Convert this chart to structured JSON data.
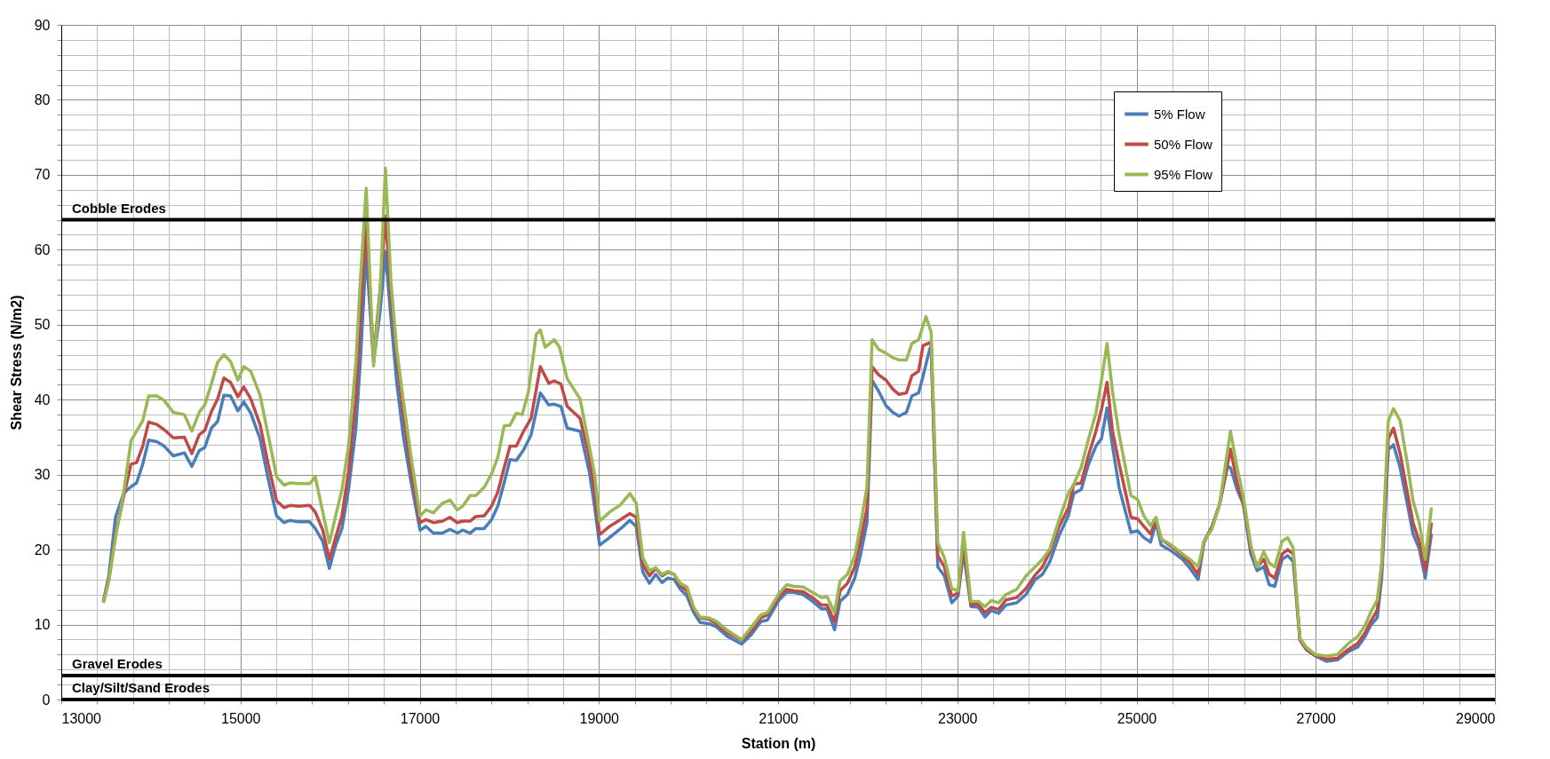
{
  "chart_data": {
    "type": "line",
    "xlabel": "Station (m)",
    "ylabel": "Shear Stress (N/m2)",
    "xlim": [
      13000,
      29000
    ],
    "ylim": [
      0,
      90
    ],
    "xticks": [
      13000,
      {
        "value": 13400,
        "label": null
      },
      {
        "value": 13800,
        "label": null
      },
      {
        "value": 14200,
        "label": null
      },
      {
        "value": 14600,
        "label": null
      },
      15000,
      {
        "value": 15400,
        "label": null
      },
      {
        "value": 15800,
        "label": null
      },
      {
        "value": 16200,
        "label": null
      },
      {
        "value": 16600,
        "label": null
      },
      17000,
      {
        "value": 17400,
        "label": null
      },
      {
        "value": 17800,
        "label": null
      },
      {
        "value": 18200,
        "label": null
      },
      {
        "value": 18600,
        "label": null
      },
      19000,
      {
        "value": 19400,
        "label": null
      },
      {
        "value": 19800,
        "label": null
      },
      {
        "value": 20200,
        "label": null
      },
      {
        "value": 20600,
        "label": null
      },
      21000,
      {
        "value": 21400,
        "label": null
      },
      {
        "value": 21800,
        "label": null
      },
      {
        "value": 22200,
        "label": null
      },
      {
        "value": 22600,
        "label": null
      },
      23000,
      {
        "value": 23400,
        "label": null
      },
      {
        "value": 23800,
        "label": null
      },
      {
        "value": 24200,
        "label": null
      },
      {
        "value": 24600,
        "label": null
      },
      25000,
      {
        "value": 25400,
        "label": null
      },
      {
        "value": 25800,
        "label": null
      },
      {
        "value": 26200,
        "label": null
      },
      {
        "value": 26600,
        "label": null
      },
      27000,
      {
        "value": 27400,
        "label": null
      },
      {
        "value": 27800,
        "label": null
      },
      {
        "value": 28200,
        "label": null
      },
      {
        "value": 28600,
        "label": null
      },
      29000
    ],
    "yticks": [
      0,
      {
        "value": 2,
        "label": null
      },
      {
        "value": 4,
        "label": null
      },
      {
        "value": 6,
        "label": null
      },
      {
        "value": 8,
        "label": null
      },
      10,
      {
        "value": 12,
        "label": null
      },
      {
        "value": 14,
        "label": null
      },
      {
        "value": 16,
        "label": null
      },
      {
        "value": 18,
        "label": null
      },
      20,
      {
        "value": 22,
        "label": null
      },
      {
        "value": 24,
        "label": null
      },
      {
        "value": 26,
        "label": null
      },
      {
        "value": 28,
        "label": null
      },
      30,
      {
        "value": 32,
        "label": null
      },
      {
        "value": 34,
        "label": null
      },
      {
        "value": 36,
        "label": null
      },
      {
        "value": 38,
        "label": null
      },
      40,
      {
        "value": 42,
        "label": null
      },
      {
        "value": 44,
        "label": null
      },
      {
        "value": 46,
        "label": null
      },
      {
        "value": 48,
        "label": null
      },
      50,
      {
        "value": 52,
        "label": null
      },
      {
        "value": 54,
        "label": null
      },
      {
        "value": 56,
        "label": null
      },
      {
        "value": 58,
        "label": null
      },
      60,
      {
        "value": 62,
        "label": null
      },
      {
        "value": 64,
        "label": null
      },
      {
        "value": 66,
        "label": null
      },
      {
        "value": 68,
        "label": null
      },
      70,
      {
        "value": 72,
        "label": null
      },
      {
        "value": 74,
        "label": null
      },
      {
        "value": 76,
        "label": null
      },
      {
        "value": 78,
        "label": null
      },
      80,
      {
        "value": 82,
        "label": null
      },
      {
        "value": 84,
        "label": null
      },
      {
        "value": 86,
        "label": null
      },
      {
        "value": 88,
        "label": null
      },
      90
    ],
    "grid": true,
    "legend": "top right",
    "marker": "none",
    "line_style": "solid",
    "ref_lines": [
      {
        "axis": "y",
        "value": 64,
        "label": "Cobble Erodes",
        "color": "#000000"
      },
      {
        "axis": "y",
        "value": 3.2,
        "label": "Gravel Erodes",
        "color": "#000000"
      },
      {
        "axis": "y",
        "value": 0,
        "label": "Clay/Silt/Sand Erodes",
        "color": "#000000"
      }
    ],
    "series": [
      {
        "name": "5% Flow",
        "color": "#4a7ebb",
        "x": [
          13470,
          13531,
          13605,
          13695,
          13778,
          13840,
          13909,
          13975,
          14066,
          14148,
          14251,
          14374,
          14457,
          14539,
          14601,
          14675,
          14745,
          14815,
          14889,
          14971,
          15037,
          15115,
          15218,
          15309,
          15403,
          15486,
          15555,
          15650,
          15773,
          15835,
          15918,
          15992,
          16062,
          16132,
          16206,
          16288,
          16337,
          16403,
          16485,
          16560,
          16617,
          16679,
          16741,
          16815,
          16905,
          17004,
          17070,
          17152,
          17255,
          17337,
          17420,
          17481,
          17563,
          17625,
          17720,
          17802,
          17872,
          17942,
          18008,
          18078,
          18160,
          18243,
          18346,
          18440,
          18502,
          18576,
          18646,
          18790,
          18893,
          18955,
          19008,
          19119,
          19243,
          19346,
          19416,
          19490,
          19564,
          19634,
          19704,
          19770,
          19840,
          19909,
          19983,
          20058,
          20128,
          20230,
          20313,
          20436,
          20593,
          20704,
          20807,
          20881,
          21012,
          21095,
          21177,
          21280,
          21383,
          21486,
          21547,
          21630,
          21691,
          21774,
          21856,
          21918,
          21992,
          22049,
          22123,
          22205,
          22280,
          22349,
          22432,
          22493,
          22568,
          22617,
          22691,
          22708,
          22782,
          22856,
          22938,
          23008,
          23070,
          23152,
          23235,
          23309,
          23379,
          23461,
          23543,
          23663,
          23766,
          23869,
          23951,
          24033,
          24136,
          24239,
          24300,
          24383,
          24465,
          24547,
          24609,
          24671,
          24732,
          24807,
          24938,
          25012,
          25082,
          25156,
          25218,
          25276,
          25391,
          25514,
          25597,
          25687,
          25753,
          25844,
          25926,
          26016,
          26049,
          26123,
          26193,
          26276,
          26346,
          26420,
          26481,
          26543,
          26625,
          26687,
          26749,
          26823,
          26893,
          26996,
          27119,
          27242,
          27366,
          27469,
          27551,
          27613,
          27687,
          27736,
          27810,
          27868,
          27942,
          28024,
          28086,
          28156,
          28222,
          28292
        ],
        "values": [
          13.1,
          16.5,
          24.3,
          27.5,
          28.4,
          28.9,
          31.4,
          34.6,
          34.4,
          33.8,
          32.5,
          32.9,
          31.1,
          33.2,
          33.6,
          36.2,
          37.1,
          40.6,
          40.5,
          38.5,
          39.7,
          38.2,
          34.8,
          29.4,
          24.5,
          23.6,
          23.9,
          23.7,
          23.7,
          22.8,
          21.1,
          17.5,
          20.6,
          22.8,
          28.0,
          36.2,
          45,
          59.7,
          45,
          52,
          59.7,
          50.9,
          42.6,
          35.3,
          28.9,
          22.6,
          23.1,
          22.2,
          22.2,
          22.7,
          22.2,
          22.6,
          22.2,
          22.8,
          22.8,
          24.0,
          25.8,
          28.9,
          32.0,
          31.9,
          33.3,
          35.3,
          40.9,
          39.3,
          39.4,
          39.1,
          36.2,
          35.8,
          30.4,
          25.5,
          20.6,
          21.6,
          22.8,
          23.9,
          23.1,
          17.0,
          15.5,
          16.7,
          15.6,
          16.2,
          16.0,
          14.7,
          13.8,
          11.6,
          10.3,
          10.1,
          9.7,
          8.4,
          7.4,
          8.7,
          10.4,
          10.6,
          13.3,
          14.3,
          14.3,
          14.0,
          13.1,
          12.1,
          12.1,
          9.3,
          13.1,
          14.0,
          16.2,
          19.2,
          23.6,
          42.6,
          41.1,
          39.2,
          38.3,
          37.8,
          38.3,
          40.5,
          40.9,
          43.1,
          46.7,
          47.2,
          17.7,
          16.5,
          12.9,
          13.8,
          19.7,
          12.4,
          12.3,
          11.0,
          11.9,
          11.5,
          12.6,
          12.9,
          14.0,
          16.0,
          16.7,
          18.4,
          21.9,
          24.5,
          27.5,
          28.0,
          31.4,
          33.8,
          34.8,
          38.9,
          33.8,
          28.2,
          22.3,
          22.5,
          21.6,
          21.0,
          23.6,
          20.6,
          19.8,
          18.7,
          17.5,
          16.0,
          20.9,
          23.1,
          26.0,
          31.1,
          30.9,
          28.0,
          26.0,
          19.4,
          17.2,
          17.7,
          15.3,
          15.1,
          18.7,
          19.2,
          18.4,
          8.0,
          6.7,
          5.8,
          5.1,
          5.3,
          6.4,
          7.0,
          8.4,
          9.9,
          10.9,
          16.2,
          33.3,
          34.0,
          30.9,
          26.0,
          22.1,
          20.1,
          16.2,
          22.1
        ]
      },
      {
        "name": "50% Flow",
        "color": "#be4b48",
        "x": [
          13470,
          13531,
          13605,
          13695,
          13778,
          13840,
          13909,
          13975,
          14066,
          14148,
          14251,
          14374,
          14457,
          14539,
          14601,
          14675,
          14745,
          14815,
          14889,
          14971,
          15037,
          15115,
          15218,
          15309,
          15403,
          15486,
          15555,
          15650,
          15773,
          15835,
          15918,
          15992,
          16062,
          16132,
          16206,
          16288,
          16337,
          16403,
          16485,
          16560,
          16617,
          16679,
          16741,
          16815,
          16905,
          17004,
          17070,
          17152,
          17255,
          17337,
          17420,
          17481,
          17563,
          17625,
          17720,
          17802,
          17872,
          17942,
          18008,
          18078,
          18160,
          18243,
          18346,
          18440,
          18502,
          18576,
          18646,
          18790,
          18893,
          18955,
          19008,
          19119,
          19243,
          19346,
          19416,
          19490,
          19564,
          19634,
          19704,
          19770,
          19840,
          19909,
          19983,
          20058,
          20128,
          20230,
          20313,
          20436,
          20593,
          20704,
          20807,
          20881,
          21012,
          21095,
          21177,
          21280,
          21383,
          21486,
          21547,
          21630,
          21691,
          21774,
          21856,
          21918,
          21992,
          22049,
          22123,
          22205,
          22280,
          22349,
          22432,
          22493,
          22568,
          22617,
          22691,
          22708,
          22782,
          22856,
          22938,
          23008,
          23070,
          23152,
          23235,
          23309,
          23379,
          23461,
          23543,
          23663,
          23766,
          23869,
          23951,
          24033,
          24136,
          24239,
          24300,
          24383,
          24465,
          24547,
          24609,
          24671,
          24732,
          24807,
          24938,
          25012,
          25082,
          25156,
          25218,
          25276,
          25391,
          25514,
          25597,
          25687,
          25753,
          25844,
          25926,
          26016,
          26049,
          26123,
          26193,
          26276,
          26346,
          26420,
          26481,
          26543,
          26625,
          26687,
          26749,
          26823,
          26893,
          26996,
          27119,
          27242,
          27366,
          27469,
          27551,
          27613,
          27687,
          27736,
          27810,
          27868,
          27942,
          28024,
          28086,
          28156,
          28222,
          28292
        ],
        "values": [
          13.0,
          16.0,
          22.0,
          27.0,
          31.4,
          31.6,
          33.8,
          37.0,
          36.7,
          36.0,
          34.9,
          35.0,
          32.8,
          35.3,
          35.9,
          38.4,
          40.1,
          42.9,
          42.3,
          40.4,
          41.7,
          40.1,
          36.7,
          31.4,
          26.5,
          25.6,
          25.9,
          25.8,
          25.9,
          25.0,
          22.6,
          18.7,
          21.6,
          24.5,
          30.4,
          40.1,
          50.9,
          63.6,
          45.5,
          55,
          64.5,
          53.8,
          46.0,
          38.2,
          30.4,
          23.6,
          24.0,
          23.6,
          23.8,
          24.3,
          23.6,
          23.8,
          23.8,
          24.4,
          24.5,
          25.8,
          27.7,
          30.9,
          33.8,
          33.8,
          35.8,
          37.5,
          44.4,
          42.2,
          42.5,
          42.1,
          39.1,
          37.5,
          32.3,
          27.5,
          22.0,
          23.1,
          24.0,
          24.8,
          24.3,
          18.0,
          16.5,
          17.5,
          16.5,
          17.0,
          16.7,
          15.2,
          14.5,
          12.1,
          10.9,
          10.7,
          10.1,
          8.9,
          7.9,
          9.2,
          10.9,
          11.3,
          13.8,
          14.7,
          14.5,
          14.4,
          13.6,
          12.6,
          12.6,
          10.4,
          14.5,
          15.5,
          17.7,
          21.1,
          25.5,
          44.4,
          43.3,
          42.6,
          41.4,
          40.7,
          40.9,
          43.2,
          43.8,
          47.2,
          47.6,
          47.5,
          19.2,
          17.7,
          13.8,
          14.2,
          20.6,
          12.7,
          12.7,
          11.6,
          12.3,
          12.0,
          13.3,
          13.6,
          14.8,
          16.6,
          17.7,
          19.7,
          23.1,
          25.5,
          28.7,
          28.9,
          32.6,
          35.8,
          38.7,
          42.3,
          35.8,
          31.4,
          24.3,
          24.1,
          23.1,
          22.1,
          24.0,
          21.4,
          20.4,
          19.2,
          18.2,
          16.7,
          21.1,
          23.1,
          26.0,
          31.4,
          33.4,
          28.9,
          26.2,
          20.1,
          17.7,
          18.7,
          16.7,
          16.2,
          19.4,
          20.0,
          19.4,
          8.0,
          6.7,
          5.9,
          5.4,
          5.5,
          6.7,
          7.5,
          8.9,
          10.4,
          11.9,
          17.7,
          34.8,
          36.2,
          32.8,
          27.5,
          23.6,
          21.1,
          17.2,
          23.6
        ]
      },
      {
        "name": "95% Flow",
        "color": "#98b954",
        "x": [
          13470,
          13531,
          13605,
          13695,
          13778,
          13840,
          13909,
          13975,
          14066,
          14148,
          14251,
          14374,
          14457,
          14539,
          14601,
          14675,
          14745,
          14815,
          14889,
          14971,
          15037,
          15115,
          15218,
          15309,
          15403,
          15486,
          15555,
          15650,
          15773,
          15835,
          15918,
          15992,
          16062,
          16132,
          16206,
          16288,
          16337,
          16403,
          16485,
          16560,
          16617,
          16679,
          16741,
          16815,
          16905,
          17004,
          17070,
          17152,
          17255,
          17337,
          17420,
          17481,
          17563,
          17625,
          17720,
          17802,
          17872,
          17942,
          18008,
          18078,
          18144,
          18214,
          18300,
          18346,
          18400,
          18502,
          18560,
          18646,
          18790,
          18955,
          19008,
          19119,
          19243,
          19346,
          19416,
          19490,
          19564,
          19634,
          19704,
          19770,
          19840,
          19909,
          19983,
          20058,
          20128,
          20230,
          20313,
          20436,
          20593,
          20704,
          20807,
          20881,
          21012,
          21095,
          21177,
          21280,
          21383,
          21486,
          21547,
          21630,
          21691,
          21774,
          21856,
          21918,
          21992,
          22049,
          22123,
          22205,
          22280,
          22349,
          22432,
          22493,
          22568,
          22650,
          22708,
          22782,
          22856,
          22938,
          23008,
          23070,
          23152,
          23235,
          23309,
          23379,
          23461,
          23543,
          23663,
          23766,
          23869,
          23951,
          24033,
          24136,
          24239,
          24300,
          24383,
          24465,
          24547,
          24609,
          24671,
          24732,
          24807,
          24938,
          25012,
          25082,
          25156,
          25218,
          25276,
          25391,
          25514,
          25597,
          25687,
          25753,
          25844,
          25926,
          26049,
          26123,
          26193,
          26276,
          26346,
          26420,
          26481,
          26543,
          26625,
          26687,
          26749,
          26823,
          26893,
          26996,
          27119,
          27242,
          27366,
          27469,
          27551,
          27613,
          27687,
          27736,
          27810,
          27868,
          27942,
          28024,
          28086,
          28156,
          28222,
          28292
        ],
        "values": [
          12.9,
          15.8,
          21.6,
          27.5,
          34.5,
          35.8,
          37.2,
          40.5,
          40.5,
          39.9,
          38.3,
          38.0,
          35.8,
          38.3,
          39.3,
          42.1,
          45.0,
          46.0,
          45.1,
          42.6,
          44.4,
          43.8,
          40.6,
          35.3,
          29.7,
          28.6,
          28.9,
          28.8,
          28.8,
          29.7,
          25.0,
          20.9,
          24.5,
          28.0,
          33.8,
          45.0,
          55.8,
          68.2,
          44.5,
          54.8,
          70.9,
          55.8,
          47.0,
          40.1,
          32.3,
          24.5,
          25.3,
          24.9,
          26.2,
          26.6,
          25.3,
          25.8,
          27.2,
          27.2,
          28.3,
          30.1,
          32.3,
          36.5,
          36.6,
          38.2,
          38.0,
          41.1,
          48.7,
          49.3,
          47.0,
          48.0,
          47.0,
          42.8,
          40.1,
          29.9,
          23.8,
          25.0,
          26.0,
          27.5,
          26.2,
          18.9,
          17.2,
          17.6,
          16.7,
          17.1,
          16.7,
          15.5,
          15.0,
          12.3,
          11.0,
          10.9,
          10.4,
          9.2,
          8.0,
          9.7,
          11.3,
          11.6,
          14.2,
          15.3,
          15.1,
          15.0,
          14.3,
          13.6,
          13.7,
          11.6,
          15.8,
          16.7,
          19.2,
          23.1,
          28.4,
          48.0,
          46.7,
          46.2,
          45.6,
          45.3,
          45.3,
          47.5,
          48.0,
          51.1,
          49.0,
          20.9,
          18.9,
          14.8,
          14.5,
          22.3,
          13.1,
          13.1,
          12.4,
          13.2,
          12.9,
          14.0,
          14.7,
          16.5,
          17.7,
          18.7,
          20.1,
          24.0,
          27.5,
          28.7,
          31.0,
          34.8,
          38.2,
          42.6,
          47.5,
          41.1,
          35.3,
          27.2,
          26.7,
          24.5,
          23.2,
          24.3,
          21.4,
          20.6,
          19.4,
          18.7,
          17.7,
          21.1,
          22.8,
          26.0,
          35.8,
          30.9,
          27.0,
          20.6,
          17.7,
          19.7,
          18.2,
          17.7,
          21.1,
          21.6,
          20.2,
          8.2,
          7.0,
          6.0,
          5.8,
          6.0,
          7.5,
          8.4,
          9.9,
          11.6,
          13.3,
          18.2,
          37.2,
          38.8,
          37.2,
          31.4,
          26.5,
          23.6,
          18.7,
          25.6
        ]
      }
    ]
  }
}
